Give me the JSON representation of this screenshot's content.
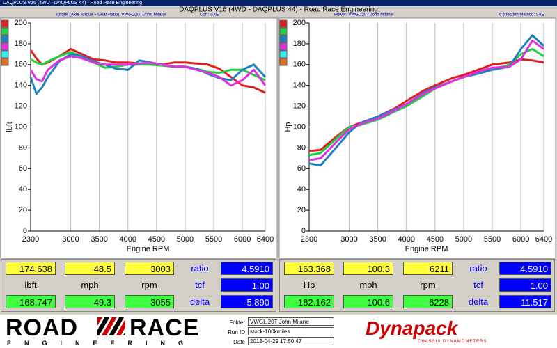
{
  "window": {
    "title": "DAQPLUS V16 (4WD - DAQPLUS 44) - Road Race Engineering"
  },
  "chart_data": [
    {
      "type": "line",
      "title": "DAQPLUS V16 (4WD - DAQPLUS 44) - Road Race Engineering",
      "subtitle": "Torque (Axle Torque ÷ Gear Ratio): VWGLI20T John Milane",
      "subtitle2": "Corr: SAE",
      "x_label": "Engine RPM",
      "y_label": "lbft",
      "x": [
        2300,
        2400,
        2500,
        2600,
        2800,
        3000,
        3200,
        3400,
        3600,
        3800,
        4000,
        4200,
        4400,
        4600,
        4800,
        5000,
        5200,
        5400,
        5600,
        5800,
        6000,
        6200,
        6400
      ],
      "series": [
        {
          "color": "#e02020",
          "values": [
            174,
            166,
            160,
            162,
            168,
            175,
            170,
            165,
            164,
            162,
            162,
            161,
            160,
            160,
            162,
            162,
            161,
            160,
            156,
            148,
            140,
            138,
            133
          ]
        },
        {
          "color": "#20d040",
          "values": [
            165,
            162,
            160,
            163,
            168,
            172,
            168,
            162,
            157,
            158,
            160,
            160,
            160,
            159,
            158,
            158,
            156,
            153,
            152,
            155,
            155,
            150,
            145
          ]
        },
        {
          "color": "#2080c0",
          "values": [
            148,
            132,
            138,
            148,
            163,
            170,
            168,
            163,
            160,
            156,
            155,
            164,
            162,
            160,
            158,
            158,
            156,
            151,
            147,
            145,
            155,
            160,
            148
          ]
        },
        {
          "color": "#e030e0",
          "values": [
            155,
            146,
            144,
            155,
            164,
            168,
            166,
            162,
            160,
            160,
            160,
            161,
            162,
            160,
            158,
            158,
            155,
            152,
            148,
            140,
            145,
            155,
            140
          ]
        }
      ],
      "legend_colors": [
        "#e02020",
        "#20d040",
        "#2080c0",
        "#e030e0",
        "#30f0f0",
        "#e07020"
      ],
      "xlim": [
        2300,
        6400
      ],
      "xticks": [
        2300,
        3000,
        3500,
        4000,
        4500,
        5000,
        5500,
        6000,
        6400
      ],
      "ylim": [
        0,
        200
      ],
      "yticks": [
        0,
        20,
        40,
        60,
        80,
        100,
        120,
        140,
        160,
        180,
        200
      ],
      "grid": "x"
    },
    {
      "type": "line",
      "title": "DAQPLUS V16 (4WD - DAQPLUS 44) - Road Race Engineering",
      "subtitle": "Power: VWGLI20T John Milane",
      "subtitle2": "Correction Method: SAE",
      "x_label": "Engine RPM",
      "y_label": "Hp",
      "x": [
        2300,
        2500,
        2800,
        3000,
        3200,
        3500,
        3800,
        4000,
        4300,
        4500,
        4800,
        5000,
        5300,
        5500,
        5800,
        6000,
        6200,
        6400
      ],
      "series": [
        {
          "color": "#e02020",
          "values": [
            77,
            78,
            92,
            100,
            104,
            110,
            118,
            125,
            135,
            140,
            147,
            150,
            156,
            160,
            162,
            165,
            164,
            162
          ]
        },
        {
          "color": "#20d040",
          "values": [
            73,
            75,
            90,
            100,
            102,
            107,
            115,
            120,
            130,
            137,
            144,
            148,
            152,
            155,
            160,
            170,
            175,
            168
          ]
        },
        {
          "color": "#2080c0",
          "values": [
            65,
            63,
            82,
            95,
            104,
            110,
            117,
            122,
            133,
            138,
            144,
            148,
            152,
            155,
            158,
            175,
            188,
            178
          ]
        },
        {
          "color": "#e030e0",
          "values": [
            68,
            70,
            87,
            98,
            103,
            108,
            116,
            122,
            132,
            137,
            144,
            148,
            154,
            157,
            158,
            165,
            183,
            175
          ]
        }
      ],
      "legend_colors": [
        "#e02020",
        "#20d040",
        "#2080c0",
        "#e030e0",
        "#30f0f0",
        "#e07020"
      ],
      "xlim": [
        2300,
        6400
      ],
      "xticks": [
        2300,
        3000,
        3500,
        4000,
        4500,
        5000,
        5500,
        6000,
        6400
      ],
      "ylim": [
        0,
        200
      ],
      "yticks": [
        0,
        20,
        40,
        60,
        80,
        100,
        120,
        140,
        160,
        180,
        200
      ],
      "grid": "x"
    }
  ],
  "panels": [
    {
      "rows": [
        [
          "174.638",
          "48.5",
          "3003",
          "ratio",
          "4.5910"
        ],
        [
          "lbft",
          "mph",
          "rpm",
          "tcf",
          "1.00"
        ],
        [
          "168.747",
          "49.3",
          "3055",
          "delta",
          "-5.890"
        ]
      ]
    },
    {
      "rows": [
        [
          "163.368",
          "100.3",
          "6211",
          "ratio",
          "4.5910"
        ],
        [
          "Hp",
          "mph",
          "rpm",
          "tcf",
          "1.00"
        ],
        [
          "182.162",
          "100.6",
          "6228",
          "delta",
          "11.517"
        ]
      ]
    }
  ],
  "footer": {
    "logo_left": "ROAD",
    "logo_right": "RACE",
    "logo_sub": "ENGINEERING",
    "fields": [
      {
        "label": "Folder",
        "value": "VWGLI20T John Milane"
      },
      {
        "label": "Run ID",
        "value": "stock-100kmiles"
      },
      {
        "label": "Date",
        "value": "2012-04-29 17:50:47"
      }
    ],
    "brand": "Dynapack",
    "brand_sub": "CHASSIS DYNAMOMETERS"
  }
}
